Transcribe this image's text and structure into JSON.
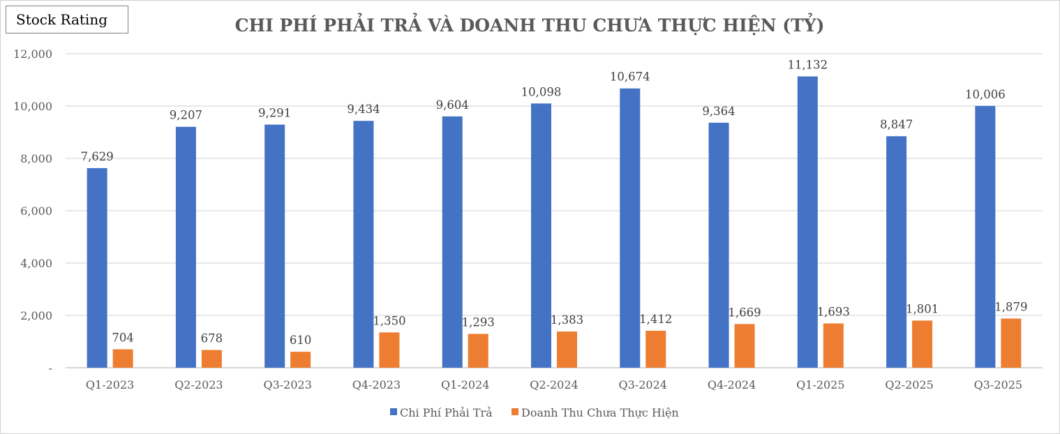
{
  "badge": {
    "label": "Stock Rating"
  },
  "chart_data": {
    "type": "bar",
    "title": "CHI PHÍ PHẢI TRẢ VÀ DOANH THU CHƯA THỰC HIỆN (TỶ)",
    "categories": [
      "Q1-2023",
      "Q2-2023",
      "Q3-2023",
      "Q4-2023",
      "Q1-2024",
      "Q2-2024",
      "Q3-2024",
      "Q4-2024",
      "Q1-2025",
      "Q2-2025",
      "Q3-2025"
    ],
    "series": [
      {
        "name": "Chi Phí Phải Trả",
        "color": "#4472C4",
        "values": [
          7629,
          9207,
          9291,
          9434,
          9604,
          10098,
          10674,
          9364,
          11132,
          8847,
          10006
        ]
      },
      {
        "name": "Doanh Thu Chưa Thực Hiện",
        "color": "#ED7D31",
        "values": [
          704,
          678,
          610,
          1350,
          1293,
          1383,
          1412,
          1669,
          1693,
          1801,
          1879
        ]
      }
    ],
    "ylim": [
      0,
      12000
    ],
    "yticks": [
      0,
      2000,
      4000,
      6000,
      8000,
      10000,
      12000
    ],
    "ytick_labels": [
      "-",
      "2,000",
      "4,000",
      "6,000",
      "8,000",
      "10,000",
      "12,000"
    ],
    "grid": true,
    "legend_position": "bottom"
  }
}
